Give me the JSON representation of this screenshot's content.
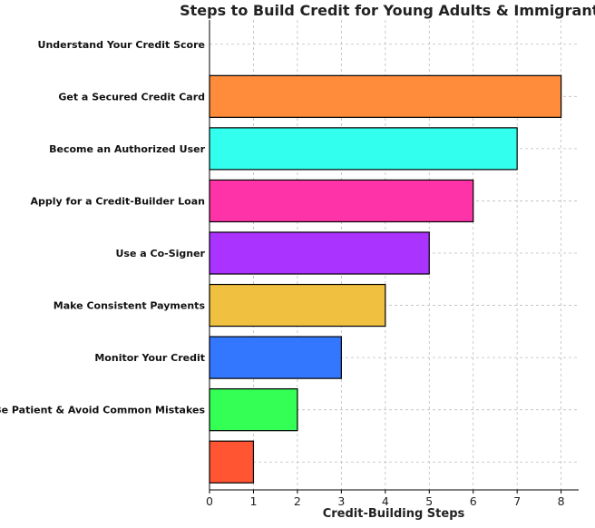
{
  "chart_data": {
    "type": "bar",
    "orientation": "horizontal",
    "title": "Steps to Build Credit for Young Adults & Immigrants",
    "xlabel": "Credit-Building Steps",
    "ylabel": "",
    "xlim": [
      0,
      8.4
    ],
    "xticks": [
      0,
      1,
      2,
      3,
      4,
      5,
      6,
      7,
      8
    ],
    "grid": true,
    "categories": [
      "Understand Your Credit Score",
      "Get a Secured Credit Card",
      "Become an Authorized User",
      "Apply for a Credit-Builder Loan",
      "Use a Co-Signer",
      "Make Consistent Payments",
      "Monitor Your Credit",
      "Be Patient & Avoid Common Mistakes",
      ""
    ],
    "values": [
      0,
      8,
      7,
      6,
      5,
      4,
      3,
      2,
      1
    ],
    "colors": [
      "#ffffff",
      "#ff8c3a",
      "#33ffee",
      "#ff33a8",
      "#aa33ff",
      "#f0c040",
      "#3377ff",
      "#33ff55",
      "#ff5533"
    ]
  }
}
